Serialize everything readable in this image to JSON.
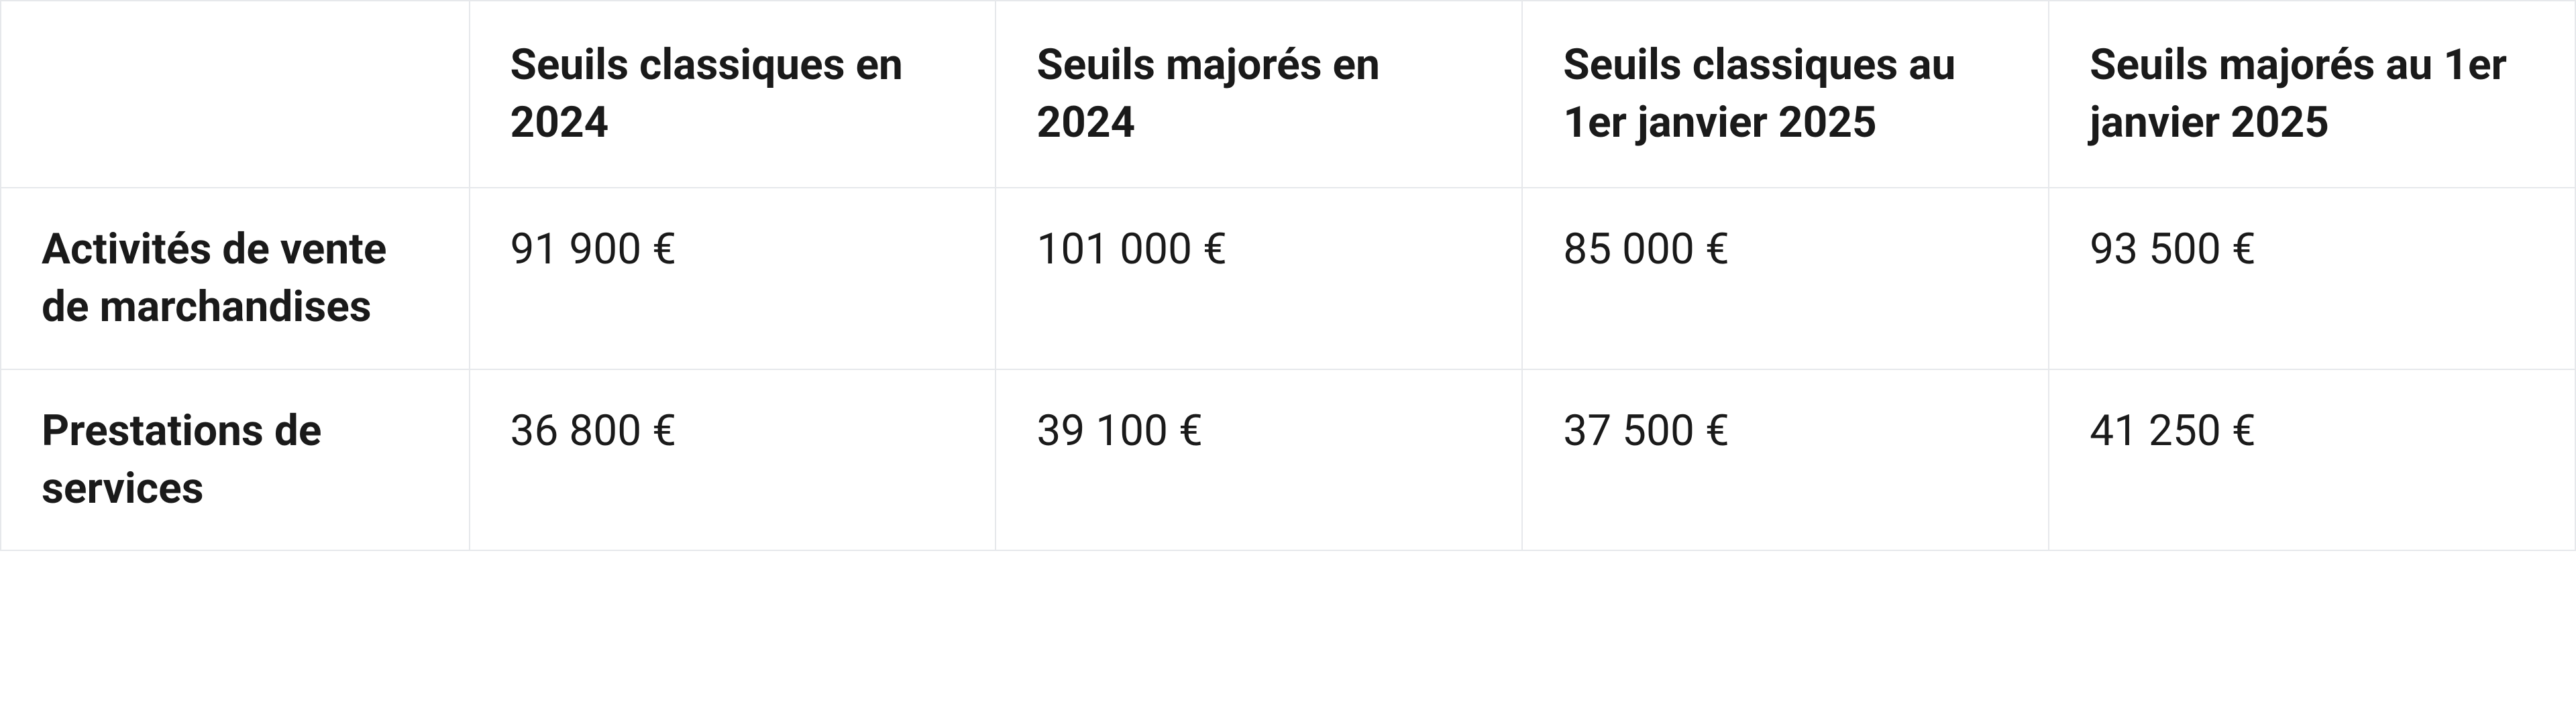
{
  "table": {
    "type": "table",
    "background_color": "#ffffff",
    "border_color": "#e6e8eb",
    "text_color": "#1a1a1a",
    "font_size_pt": 48,
    "header_font_weight": 700,
    "body_font_weight": 400,
    "columns": [
      {
        "key": "label",
        "header": "",
        "width_pct": 18.2,
        "align": "left"
      },
      {
        "key": "classique2024",
        "header": "Seuils classiques en 2024",
        "width_pct": 20.45,
        "align": "left"
      },
      {
        "key": "majore2024",
        "header": "Seuils majorés en 2024",
        "width_pct": 20.45,
        "align": "left"
      },
      {
        "key": "classique2025",
        "header": "Seuils classiques au 1er janvier 2025",
        "width_pct": 20.45,
        "align": "left"
      },
      {
        "key": "majore2025",
        "header": "Seuils majorés au 1er janvier 2025",
        "width_pct": 20.45,
        "align": "left"
      }
    ],
    "rows": [
      {
        "label": "Activités de vente de marchandises",
        "classique2024": "91 900 €",
        "majore2024": "101 000 €",
        "classique2025": "85 000 €",
        "majore2025": "93 500 €"
      },
      {
        "label": "Prestations de services",
        "classique2024": "36 800 €",
        "majore2024": "39 100 €",
        "classique2025": "37 500 €",
        "majore2025": "41 250 €"
      }
    ]
  }
}
